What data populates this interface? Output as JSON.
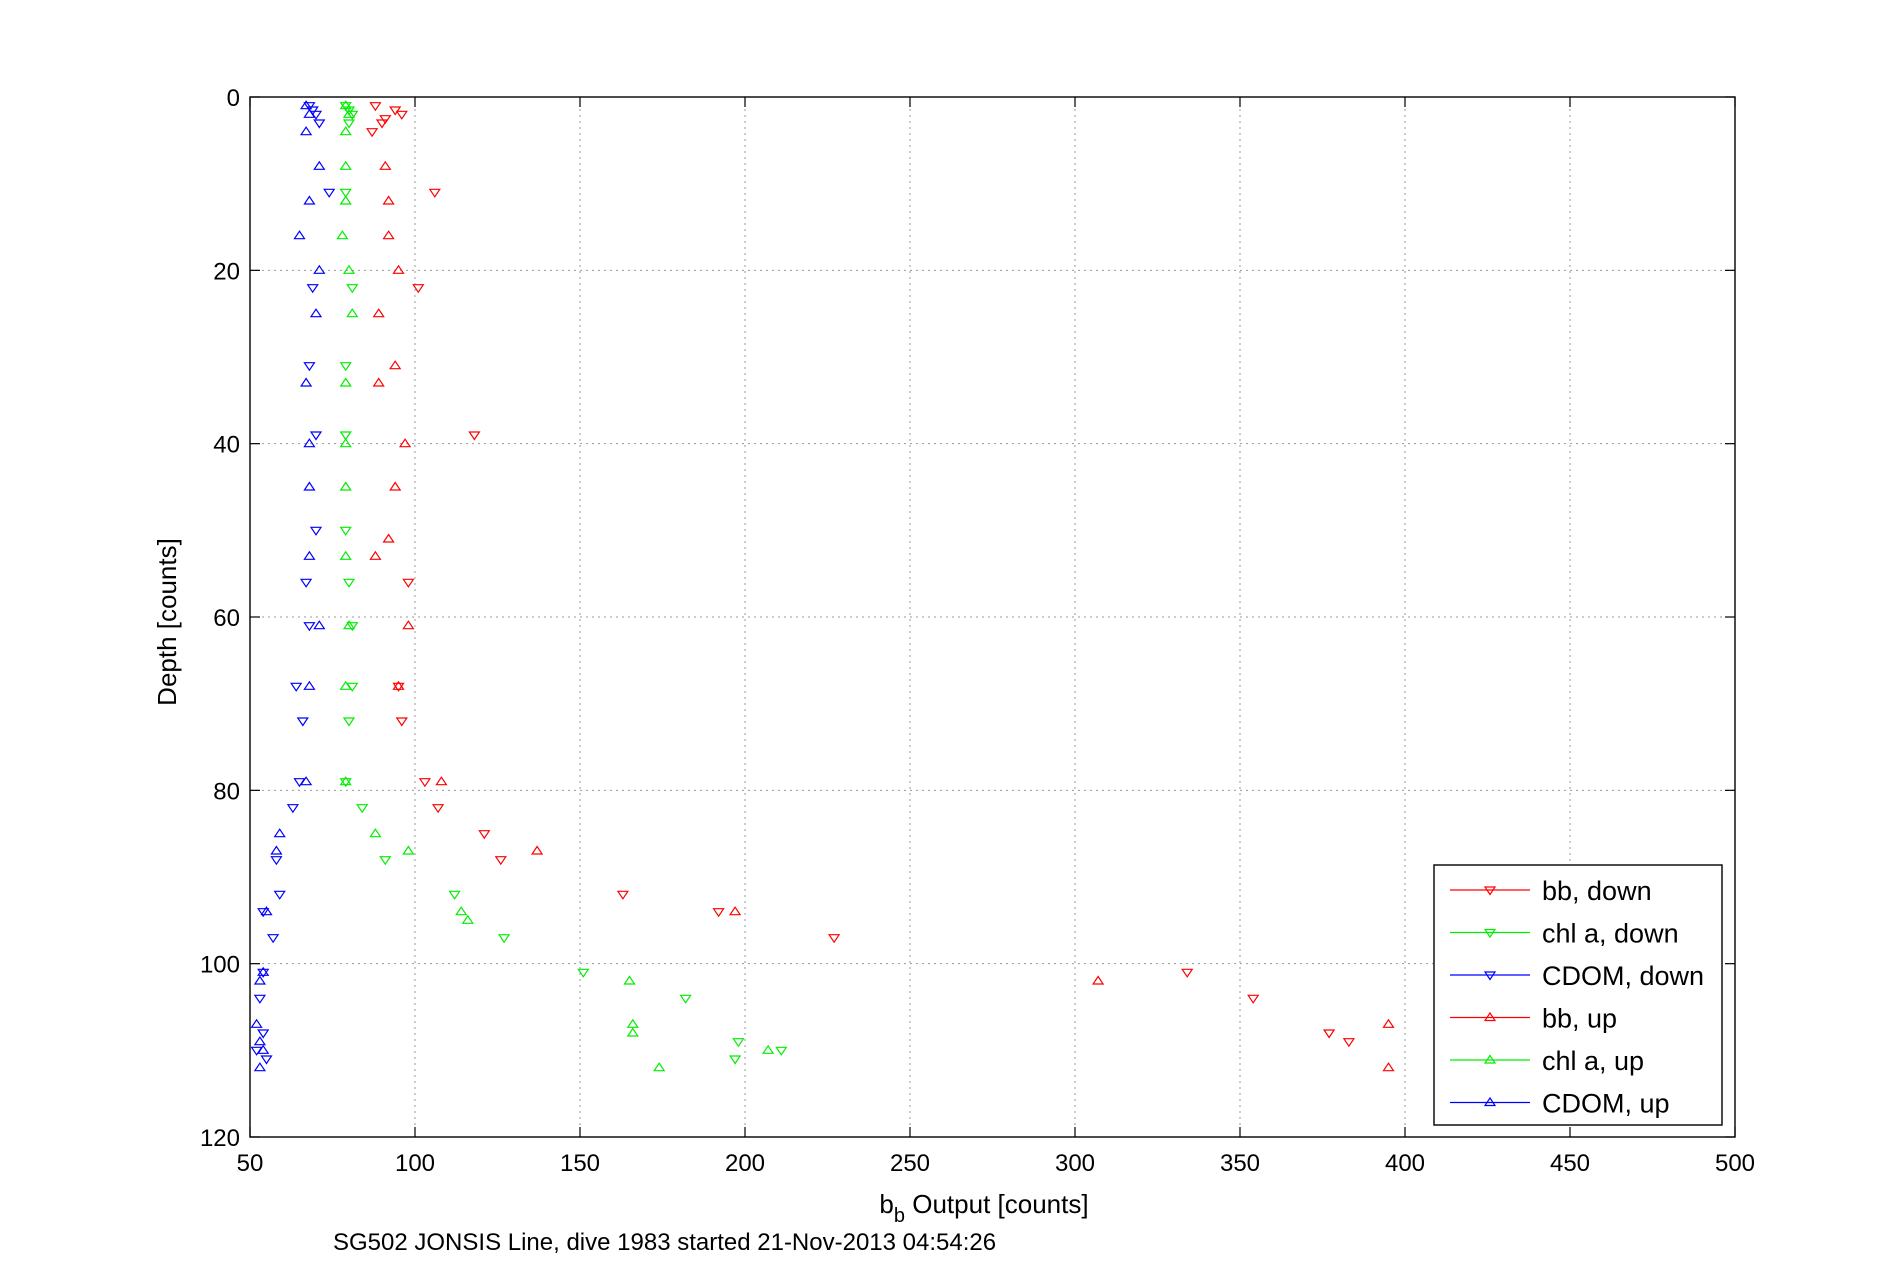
{
  "chart_data": {
    "type": "scatter",
    "title": "",
    "caption": "SG502 JONSIS Line, dive 1983 started 21-Nov-2013 04:54:26",
    "xlabel_main": "b",
    "xlabel_sub": "b",
    "xlabel_rest": " Output [counts]",
    "ylabel": "Depth [counts]",
    "xlim": [
      50,
      500
    ],
    "ylim": [
      0,
      120
    ],
    "y_reversed": true,
    "x_ticks": [
      "50",
      "100",
      "150",
      "200",
      "250",
      "300",
      "350",
      "400",
      "450",
      "500"
    ],
    "y_ticks": [
      "0",
      "20",
      "40",
      "60",
      "80",
      "100",
      "120"
    ],
    "grid": true,
    "legend_position": "bottom-right",
    "series": [
      {
        "name": "bb, down",
        "color": "#ff0000",
        "marker": "triangle-down",
        "points": [
          [
            88,
            1
          ],
          [
            94,
            1.5
          ],
          [
            96,
            2
          ],
          [
            90,
            3
          ],
          [
            91,
            2.5
          ],
          [
            87,
            4
          ],
          [
            106,
            11
          ],
          [
            101,
            22
          ],
          [
            118,
            39
          ],
          [
            98,
            56
          ],
          [
            95,
            68
          ],
          [
            96,
            72
          ],
          [
            103,
            79
          ],
          [
            107,
            82
          ],
          [
            121,
            85
          ],
          [
            126,
            88
          ],
          [
            163,
            92
          ],
          [
            192,
            94
          ],
          [
            227,
            97
          ],
          [
            334,
            101
          ],
          [
            354,
            104
          ],
          [
            377,
            108
          ],
          [
            383,
            109
          ]
        ]
      },
      {
        "name": "chl a, down",
        "color": "#00ee00",
        "marker": "triangle-down",
        "points": [
          [
            79,
            1
          ],
          [
            80,
            1.5
          ],
          [
            81,
            2
          ],
          [
            80,
            3
          ],
          [
            79,
            11
          ],
          [
            81,
            22
          ],
          [
            79,
            31
          ],
          [
            79,
            39
          ],
          [
            79,
            50
          ],
          [
            80,
            56
          ],
          [
            81,
            61
          ],
          [
            81,
            68
          ],
          [
            80,
            72
          ],
          [
            79,
            79
          ],
          [
            84,
            82
          ],
          [
            91,
            88
          ],
          [
            112,
            92
          ],
          [
            127,
            97
          ],
          [
            151,
            101
          ],
          [
            182,
            104
          ],
          [
            198,
            109
          ],
          [
            211,
            110
          ],
          [
            197,
            111
          ]
        ]
      },
      {
        "name": "CDOM, down",
        "color": "#0000ff",
        "marker": "triangle-down",
        "points": [
          [
            68,
            1
          ],
          [
            69,
            1.5
          ],
          [
            70,
            2
          ],
          [
            71,
            3
          ],
          [
            74,
            11
          ],
          [
            69,
            22
          ],
          [
            68,
            31
          ],
          [
            70,
            39
          ],
          [
            70,
            50
          ],
          [
            67,
            56
          ],
          [
            68,
            61
          ],
          [
            64,
            68
          ],
          [
            66,
            72
          ],
          [
            65,
            79
          ],
          [
            63,
            82
          ],
          [
            58,
            88
          ],
          [
            59,
            92
          ],
          [
            54,
            94
          ],
          [
            57,
            97
          ],
          [
            54,
            101
          ],
          [
            53,
            104
          ],
          [
            54,
            108
          ],
          [
            52,
            110
          ],
          [
            55,
            111
          ]
        ]
      },
      {
        "name": "bb, up",
        "color": "#ff0000",
        "marker": "triangle-up",
        "points": [
          [
            91,
            8
          ],
          [
            92,
            12
          ],
          [
            92,
            16
          ],
          [
            95,
            20
          ],
          [
            89,
            25
          ],
          [
            94,
            31
          ],
          [
            89,
            33
          ],
          [
            97,
            40
          ],
          [
            94,
            45
          ],
          [
            92,
            51
          ],
          [
            88,
            53
          ],
          [
            98,
            61
          ],
          [
            95,
            68
          ],
          [
            108,
            79
          ],
          [
            137,
            87
          ],
          [
            197,
            94
          ],
          [
            307,
            102
          ],
          [
            395,
            107
          ],
          [
            395,
            112
          ]
        ]
      },
      {
        "name": "chl a, up",
        "color": "#00ee00",
        "marker": "triangle-up",
        "points": [
          [
            79,
            1
          ],
          [
            80,
            2
          ],
          [
            79,
            4
          ],
          [
            79,
            8
          ],
          [
            79,
            12
          ],
          [
            78,
            16
          ],
          [
            80,
            20
          ],
          [
            81,
            25
          ],
          [
            79,
            33
          ],
          [
            79,
            40
          ],
          [
            79,
            45
          ],
          [
            79,
            53
          ],
          [
            80,
            61
          ],
          [
            79,
            68
          ],
          [
            79,
            79
          ],
          [
            88,
            85
          ],
          [
            98,
            87
          ],
          [
            114,
            94
          ],
          [
            116,
            95
          ],
          [
            165,
            102
          ],
          [
            166,
            107
          ],
          [
            166,
            108
          ],
          [
            174,
            112
          ],
          [
            207,
            110
          ]
        ]
      },
      {
        "name": "CDOM, up",
        "color": "#0000ff",
        "marker": "triangle-up",
        "points": [
          [
            67,
            1
          ],
          [
            68,
            2
          ],
          [
            67,
            4
          ],
          [
            71,
            8
          ],
          [
            68,
            12
          ],
          [
            65,
            16
          ],
          [
            71,
            20
          ],
          [
            70,
            25
          ],
          [
            67,
            33
          ],
          [
            68,
            40
          ],
          [
            68,
            45
          ],
          [
            68,
            53
          ],
          [
            71,
            61
          ],
          [
            68,
            68
          ],
          [
            67,
            79
          ],
          [
            59,
            85
          ],
          [
            58,
            87
          ],
          [
            55,
            94
          ],
          [
            54,
            101
          ],
          [
            53,
            102
          ],
          [
            52,
            107
          ],
          [
            53,
            109
          ],
          [
            53,
            112
          ],
          [
            54,
            110
          ]
        ]
      }
    ]
  }
}
